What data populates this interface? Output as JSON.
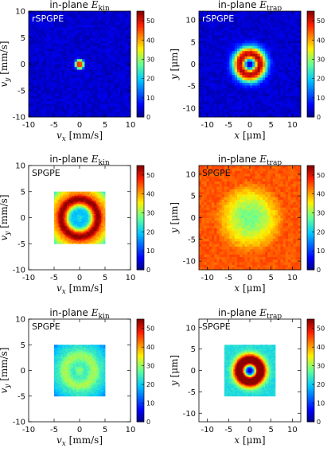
{
  "chart_data": [
    {
      "type": "heatmap",
      "title": "in-plane E_kin",
      "title_main": "in-plane ",
      "title_math": "E",
      "title_sub": "kin",
      "label": "rSPGPE",
      "xlabel": "v_x [mm/s]",
      "xlabel_var": "v",
      "xlabel_sub": "x",
      "xlabel_unit": " [mm/s]",
      "ylabel": "v_y [mm/s]",
      "ylabel_var": "v",
      "ylabel_sub": "y",
      "ylabel_unit": " [mm/s]",
      "xlim": [
        -10,
        10
      ],
      "ylim": [
        -10,
        10
      ],
      "xticks": [
        -10,
        -5,
        0,
        5,
        10
      ],
      "yticks": [
        -10,
        -5,
        0,
        5,
        10
      ],
      "colorbar": {
        "min": 0,
        "max": 55,
        "ticks": [
          0,
          10,
          20,
          30,
          40,
          50
        ]
      },
      "field": {
        "extent": [
          -10,
          10
        ],
        "background": 3.5,
        "ring_radius": 0.4,
        "ring_width": 0.35,
        "ring_peak": 45,
        "core": 10
      }
    },
    {
      "type": "heatmap",
      "title": "in-plane E_trap",
      "title_main": "in-plane ",
      "title_math": "E",
      "title_sub": "trap",
      "label": "rSPGPE",
      "xlabel": "x [μm]",
      "xlabel_var": "x",
      "xlabel_sub": "",
      "xlabel_unit": " [μm]",
      "ylabel": "y [μm]",
      "ylabel_var": "y",
      "ylabel_sub": "",
      "ylabel_unit": " [μm]",
      "xlim": [
        -12,
        12
      ],
      "ylim": [
        -12,
        12
      ],
      "xticks": [
        -10,
        -5,
        0,
        5,
        10
      ],
      "yticks": [
        -10,
        -5,
        0,
        5,
        10
      ],
      "colorbar": {
        "min": 0,
        "max": 55,
        "ticks": [
          0,
          10,
          20,
          30,
          40,
          50
        ]
      },
      "field": {
        "extent": [
          -12,
          12
        ],
        "background": 3.5,
        "ring_radius": 2.3,
        "ring_width": 1.3,
        "ring_peak": 50,
        "core": 3
      }
    },
    {
      "type": "heatmap",
      "title": "in-plane E_kin",
      "title_main": "in-plane ",
      "title_math": "E",
      "title_sub": "kin",
      "label": "SPGPE",
      "xlabel": "v_x [mm/s]",
      "xlabel_var": "v",
      "xlabel_sub": "x",
      "xlabel_unit": " [mm/s]",
      "ylabel": "v_y [mm/s]",
      "ylabel_var": "v",
      "ylabel_sub": "y",
      "ylabel_unit": " [mm/s]",
      "xlim": [
        -10,
        10
      ],
      "ylim": [
        -10,
        10
      ],
      "xticks": [
        -10,
        -5,
        0,
        5,
        10
      ],
      "yticks": [
        -10,
        -5,
        0,
        5,
        10
      ],
      "colorbar": {
        "min": 0,
        "max": 55,
        "ticks": [
          0,
          10,
          20,
          30,
          40,
          50
        ]
      },
      "field": {
        "extent": [
          -5,
          5
        ],
        "background": 3.5,
        "ring_radius": 3.6,
        "ring_width": 1.3,
        "ring_peak": 52,
        "outer": 42,
        "core": 22
      }
    },
    {
      "type": "heatmap",
      "title": "in-plane E_trap",
      "title_main": "in-plane ",
      "title_math": "E",
      "title_sub": "trap",
      "label": "SPGPE",
      "xlabel": "x [μm]",
      "xlabel_var": "x",
      "xlabel_sub": "",
      "xlabel_unit": " [μm]",
      "ylabel": "y [μm]",
      "ylabel_var": "y",
      "ylabel_sub": "",
      "ylabel_unit": " [μm]",
      "xlim": [
        -12,
        12
      ],
      "ylim": [
        -12,
        12
      ],
      "xticks": [
        -10,
        -5,
        0,
        5,
        10
      ],
      "yticks": [
        -10,
        -5,
        0,
        5,
        10
      ],
      "colorbar": {
        "min": 0,
        "max": 55,
        "ticks": [
          0,
          10,
          20,
          30,
          40,
          50
        ]
      },
      "field": {
        "extent": [
          -12,
          12
        ],
        "background": 38,
        "ring_radius": 0,
        "ring_width": 4.5,
        "ring_peak": 0,
        "core": 3,
        "radial_rise": true
      }
    },
    {
      "type": "heatmap",
      "title": "in-plane E_kin",
      "title_main": "in-plane ",
      "title_math": "E",
      "title_sub": "kin",
      "label": "SPGPE",
      "xlabel": "v_x [mm/s]",
      "xlabel_var": "v",
      "xlabel_sub": "x",
      "xlabel_unit": " [mm/s]",
      "ylabel": "v_y [mm/s]",
      "ylabel_var": "v",
      "ylabel_sub": "y",
      "ylabel_unit": " [mm/s]",
      "xlim": [
        -10,
        10
      ],
      "ylim": [
        -10,
        10
      ],
      "xticks": [
        -10,
        -5,
        0,
        5,
        10
      ],
      "yticks": [
        -10,
        -5,
        0,
        5,
        10
      ],
      "colorbar": {
        "min": 0,
        "max": 55,
        "ticks": [
          0,
          10,
          20,
          30,
          40,
          50
        ]
      },
      "field": {
        "extent": [
          -5,
          5
        ],
        "background": 4,
        "ring_radius": 2.9,
        "ring_width": 1.6,
        "ring_peak": 27,
        "outer": 22,
        "core": 30
      }
    },
    {
      "type": "heatmap",
      "title": "in-plane E_trap",
      "title_main": "in-plane ",
      "title_math": "E",
      "title_sub": "trap",
      "label": "SPGPE",
      "xlabel": "x [μm]",
      "xlabel_var": "x",
      "xlabel_sub": "",
      "xlabel_unit": " [μm]",
      "ylabel": "y [μm]",
      "ylabel_var": "y",
      "ylabel_sub": "",
      "ylabel_unit": " [μm]",
      "xlim": [
        -12,
        12
      ],
      "ylim": [
        -12,
        12
      ],
      "xticks": [
        -10,
        -5,
        0,
        5,
        10
      ],
      "yticks": [
        -10,
        -5,
        0,
        5,
        10
      ],
      "colorbar": {
        "min": 0,
        "max": 55,
        "ticks": [
          0,
          10,
          20,
          30,
          40,
          50
        ]
      },
      "field": {
        "extent": [
          -6,
          6
        ],
        "background": 22,
        "ring_radius": 2.4,
        "ring_width": 1.1,
        "ring_peak": 44,
        "core": 3
      }
    }
  ]
}
